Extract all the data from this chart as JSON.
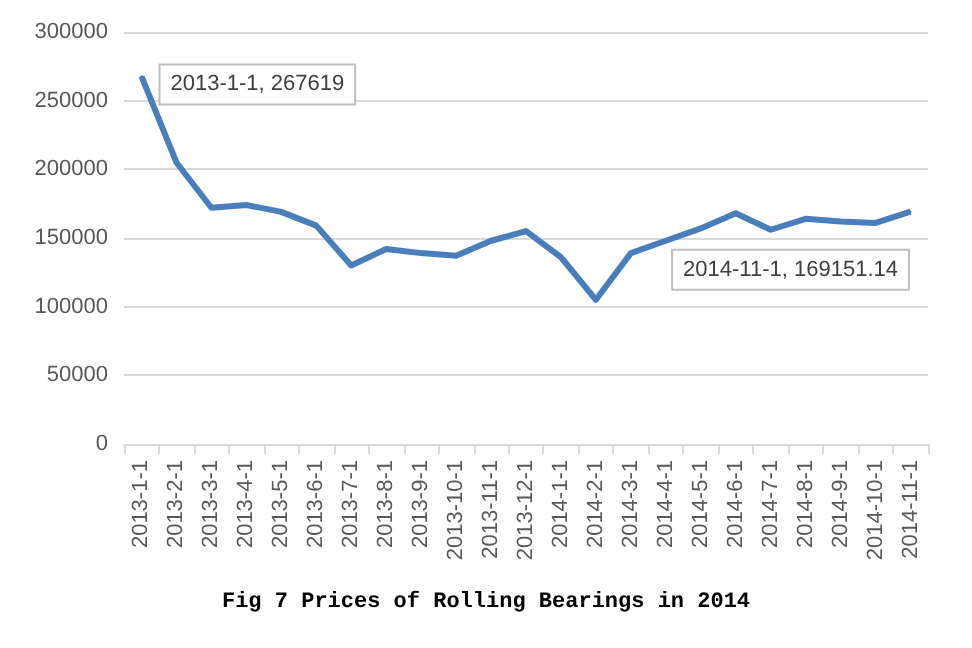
{
  "chart_data": {
    "type": "line",
    "title": "Fig 7 Prices of Rolling Bearings in 2014",
    "categories": [
      "2013-1-1",
      "2013-2-1",
      "2013-3-1",
      "2013-4-1",
      "2013-5-1",
      "2013-6-1",
      "2013-7-1",
      "2013-8-1",
      "2013-9-1",
      "2013-10-1",
      "2013-11-1",
      "2013-12-1",
      "2014-1-1",
      "2014-2-1",
      "2014-3-1",
      "2014-4-1",
      "2014-5-1",
      "2014-6-1",
      "2014-7-1",
      "2014-8-1",
      "2014-9-1",
      "2014-10-1",
      "2014-11-1"
    ],
    "series": [
      {
        "color": "#4a7ebb",
        "values": [
          267619,
          205000,
          172000,
          174000,
          169000,
          159000,
          130000,
          142000,
          139000,
          137000,
          148000,
          155000,
          136000,
          105000,
          139000,
          148000,
          157000,
          168000,
          156000,
          164000,
          162000,
          161000,
          169151.14
        ]
      }
    ],
    "ylim": [
      0,
      300000
    ],
    "yticks": [
      0,
      50000,
      100000,
      150000,
      200000,
      250000,
      300000
    ],
    "grid": "y",
    "marker": "none",
    "line_style": "solid",
    "annotations": [
      {
        "text": "2013-1-1, 267619",
        "x": "2013-1-1",
        "y": 267619
      },
      {
        "text": "2014-11-1, 169151.14",
        "x": "2014-11-1",
        "y": 169151.14
      }
    ]
  }
}
